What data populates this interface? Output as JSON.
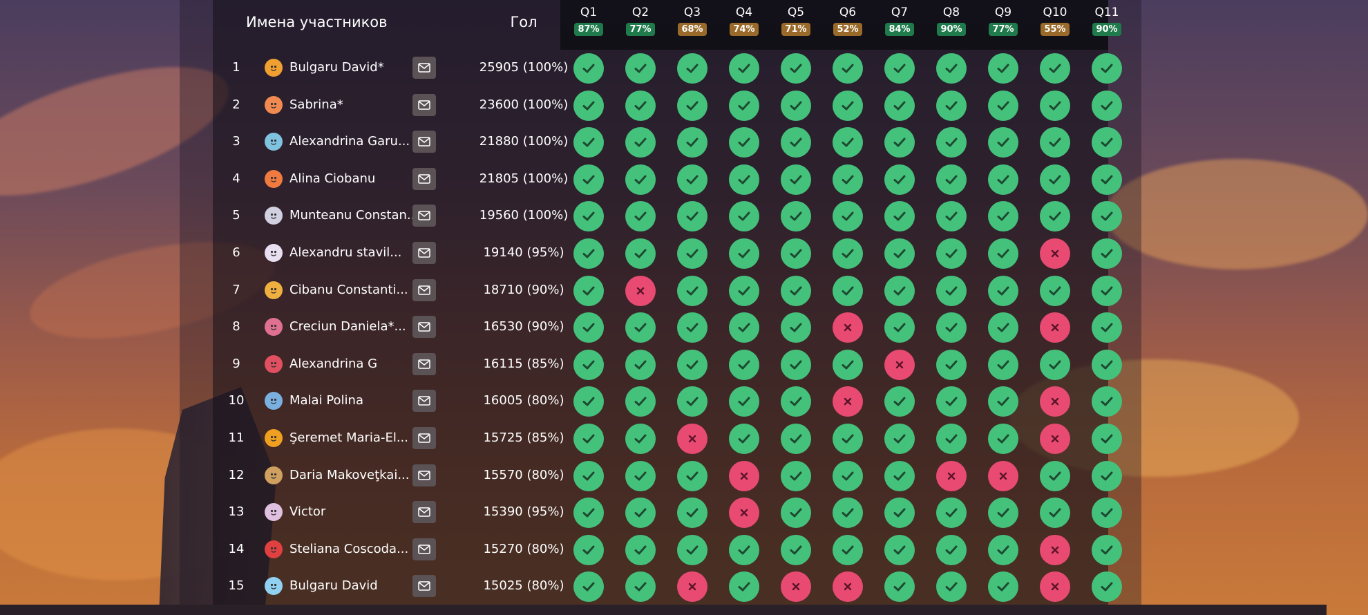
{
  "header": {
    "names_label": "Имена участников",
    "score_label": "Гол"
  },
  "questions": [
    {
      "label": "Q1",
      "pct": "87%",
      "color": "#1f7a4c"
    },
    {
      "label": "Q2",
      "pct": "77%",
      "color": "#1f7a4c"
    },
    {
      "label": "Q3",
      "pct": "68%",
      "color": "#9a6a2a"
    },
    {
      "label": "Q4",
      "pct": "74%",
      "color": "#9a6a2a"
    },
    {
      "label": "Q5",
      "pct": "71%",
      "color": "#9a6a2a"
    },
    {
      "label": "Q6",
      "pct": "52%",
      "color": "#9a6a2a"
    },
    {
      "label": "Q7",
      "pct": "84%",
      "color": "#1f7a4c"
    },
    {
      "label": "Q8",
      "pct": "90%",
      "color": "#1f7a4c"
    },
    {
      "label": "Q9",
      "pct": "77%",
      "color": "#1f7a4c"
    },
    {
      "label": "Q10",
      "pct": "55%",
      "color": "#9a6a2a"
    },
    {
      "label": "Q11",
      "pct": "90%",
      "color": "#1f7a4c"
    }
  ],
  "participants": [
    {
      "rank": "1",
      "name": "Bulgaru David*",
      "score": "25905 (100%)",
      "avatar_color": "#f0a030",
      "answers": [
        1,
        1,
        1,
        1,
        1,
        1,
        1,
        1,
        1,
        1,
        1
      ]
    },
    {
      "rank": "2",
      "name": "Sabrina*",
      "score": "23600 (100%)",
      "avatar_color": "#f08a50",
      "answers": [
        1,
        1,
        1,
        1,
        1,
        1,
        1,
        1,
        1,
        1,
        1
      ]
    },
    {
      "rank": "3",
      "name": "Alexandrina Garu...",
      "score": "21880 (100%)",
      "avatar_color": "#7fc3e0",
      "answers": [
        1,
        1,
        1,
        1,
        1,
        1,
        1,
        1,
        1,
        1,
        1
      ]
    },
    {
      "rank": "4",
      "name": "Alina Ciobanu",
      "score": "21805 (100%)",
      "avatar_color": "#f07a40",
      "answers": [
        1,
        1,
        1,
        1,
        1,
        1,
        1,
        1,
        1,
        1,
        1
      ]
    },
    {
      "rank": "5",
      "name": "Munteanu Constan...",
      "score": "19560 (100%)",
      "avatar_color": "#d0d0e0",
      "answers": [
        1,
        1,
        1,
        1,
        1,
        1,
        1,
        1,
        1,
        1,
        1
      ]
    },
    {
      "rank": "6",
      "name": "Alexandru stavil...",
      "score": "19140 (95%)",
      "avatar_color": "#e8e0f0",
      "answers": [
        1,
        1,
        1,
        1,
        1,
        1,
        1,
        1,
        1,
        0,
        1
      ]
    },
    {
      "rank": "7",
      "name": "Cibanu Constanti...",
      "score": "18710 (90%)",
      "avatar_color": "#f0b040",
      "answers": [
        1,
        0,
        1,
        1,
        1,
        1,
        1,
        1,
        1,
        1,
        1
      ]
    },
    {
      "rank": "8",
      "name": "Creciun Daniela*...",
      "score": "16530 (90%)",
      "avatar_color": "#e07090",
      "answers": [
        1,
        1,
        1,
        1,
        1,
        0,
        1,
        1,
        1,
        0,
        1
      ]
    },
    {
      "rank": "9",
      "name": "Alexandrina G",
      "score": "16115 (85%)",
      "avatar_color": "#e05060",
      "answers": [
        1,
        1,
        1,
        1,
        1,
        1,
        0,
        1,
        1,
        1,
        1
      ]
    },
    {
      "rank": "10",
      "name": "Malai Polina",
      "score": "16005 (80%)",
      "avatar_color": "#7ab0e0",
      "answers": [
        1,
        1,
        1,
        1,
        1,
        0,
        1,
        1,
        1,
        0,
        1
      ]
    },
    {
      "rank": "11",
      "name": "Şeremet Maria-El...",
      "score": "15725 (85%)",
      "avatar_color": "#f0a020",
      "answers": [
        1,
        1,
        0,
        1,
        1,
        1,
        1,
        1,
        1,
        0,
        1
      ]
    },
    {
      "rank": "12",
      "name": "Daria Makoveţkai...",
      "score": "15570 (80%)",
      "avatar_color": "#d0a060",
      "answers": [
        1,
        1,
        1,
        0,
        1,
        1,
        1,
        0,
        0,
        1,
        1
      ]
    },
    {
      "rank": "13",
      "name": "Victor",
      "score": "15390 (95%)",
      "avatar_color": "#e0c0e0",
      "answers": [
        1,
        1,
        1,
        0,
        1,
        1,
        1,
        1,
        1,
        1,
        1
      ]
    },
    {
      "rank": "14",
      "name": "Steliana Coscoda...",
      "score": "15270 (80%)",
      "avatar_color": "#e04040",
      "answers": [
        1,
        1,
        1,
        1,
        1,
        1,
        1,
        1,
        1,
        0,
        1
      ]
    },
    {
      "rank": "15",
      "name": "Bulgaru David",
      "score": "15025 (80%)",
      "avatar_color": "#90d0f0",
      "answers": [
        1,
        1,
        0,
        1,
        0,
        0,
        1,
        1,
        1,
        0,
        1
      ]
    }
  ]
}
